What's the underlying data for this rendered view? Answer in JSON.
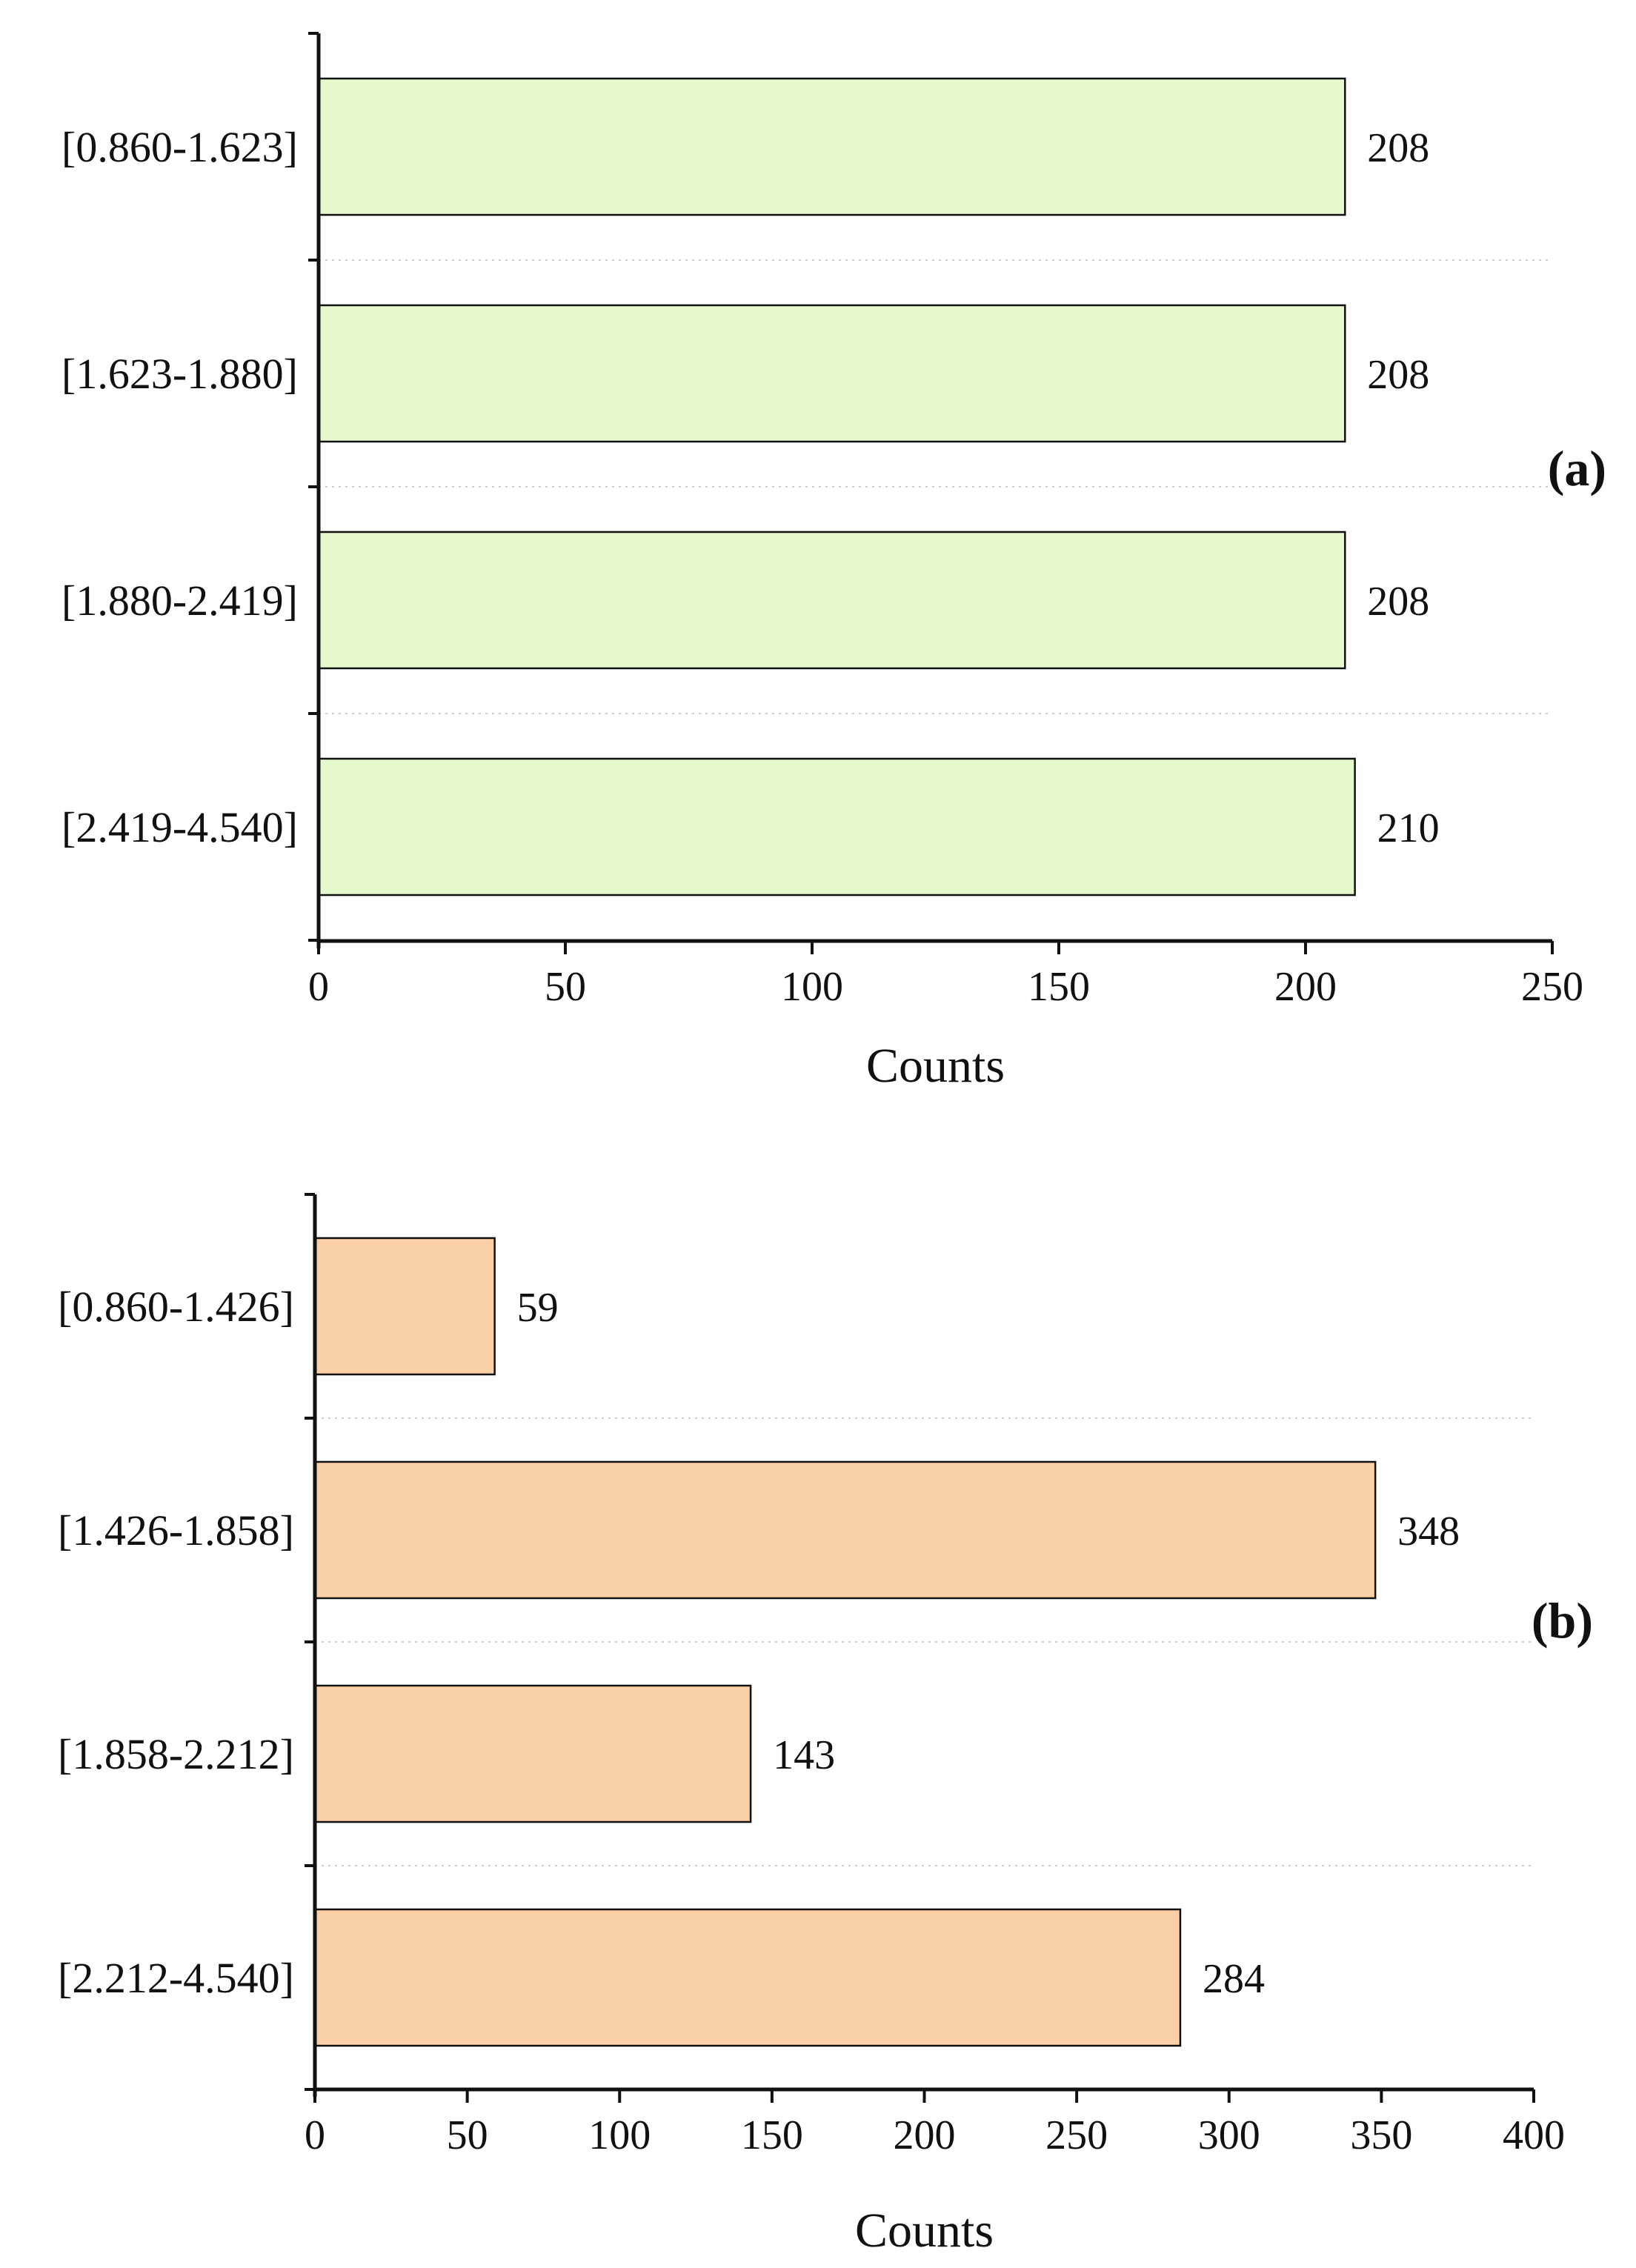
{
  "chart_data": [
    {
      "type": "bar",
      "orientation": "horizontal",
      "panel_label": "(a)",
      "categories": [
        "[0.860-1.623]",
        "[1.623-1.880]",
        "[1.880-2.419]",
        "[2.419-4.540]"
      ],
      "values": [
        208,
        208,
        208,
        210
      ],
      "value_labels": [
        "208",
        "208",
        "208",
        "210"
      ],
      "xlabel": "Counts",
      "ylabel": "",
      "xlim": [
        0,
        250
      ],
      "xticks": [
        "0",
        "50",
        "100",
        "150",
        "200",
        "250"
      ],
      "bar_color": "#e6f9cd",
      "grid": "dotted horizontal separators"
    },
    {
      "type": "bar",
      "orientation": "horizontal",
      "panel_label": "(b)",
      "categories": [
        "[0.860-1.426]",
        "[1.426-1.858]",
        "[1.858-2.212]",
        "[2.212-4.540]"
      ],
      "values": [
        59,
        348,
        143,
        284
      ],
      "value_labels": [
        "59",
        "348",
        "143",
        "284"
      ],
      "xlabel": "Counts",
      "ylabel": "",
      "xlim": [
        0,
        400
      ],
      "xticks": [
        "0",
        "50",
        "100",
        "150",
        "200",
        "250",
        "300",
        "350",
        "400"
      ],
      "bar_color": "#fbd0a6",
      "grid": "dotted horizontal separators"
    }
  ]
}
